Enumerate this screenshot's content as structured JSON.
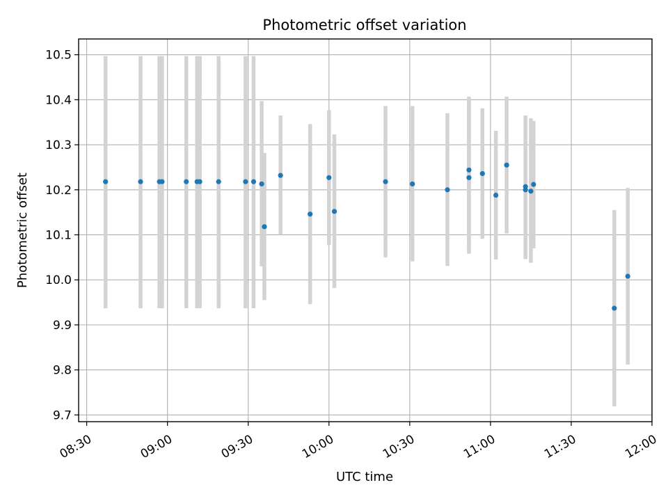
{
  "chart_data": {
    "type": "scatter",
    "title": "Photometric offset variation",
    "xlabel": "UTC time",
    "ylabel": "Photometric offset",
    "x_is_time": true,
    "xlim": [
      "08:27",
      "12:00"
    ],
    "ylim": [
      9.685,
      10.535
    ],
    "grid": true,
    "x_ticks": [
      "08:30",
      "09:00",
      "09:30",
      "10:00",
      "10:30",
      "11:00",
      "11:30",
      "12:00"
    ],
    "y_ticks": [
      9.7,
      9.8,
      9.9,
      10.0,
      10.1,
      10.2,
      10.3,
      10.4,
      10.5
    ],
    "y_tick_labels": [
      "9.7",
      "9.8",
      "9.9",
      "10.0",
      "10.1",
      "10.2",
      "10.3",
      "10.4",
      "10.5"
    ],
    "colors": {
      "point": "#1f77b4",
      "errorbar": "#d3d3d3"
    },
    "points": [
      {
        "time": "08:37",
        "y": 10.218,
        "low": 9.937,
        "high": 10.497
      },
      {
        "time": "08:50",
        "y": 10.218,
        "low": 9.937,
        "high": 10.497
      },
      {
        "time": "08:57",
        "y": 10.218,
        "low": 9.937,
        "high": 10.497
      },
      {
        "time": "08:58",
        "y": 10.218,
        "low": 9.937,
        "high": 10.497
      },
      {
        "time": "09:07",
        "y": 10.218,
        "low": 9.937,
        "high": 10.497
      },
      {
        "time": "09:11",
        "y": 10.218,
        "low": 9.937,
        "high": 10.497
      },
      {
        "time": "09:12",
        "y": 10.218,
        "low": 9.937,
        "high": 10.497
      },
      {
        "time": "09:19",
        "y": 10.218,
        "low": 9.937,
        "high": 10.497
      },
      {
        "time": "09:29",
        "y": 10.218,
        "low": 9.937,
        "high": 10.497
      },
      {
        "time": "09:32",
        "y": 10.218,
        "low": 9.937,
        "high": 10.497
      },
      {
        "time": "09:35",
        "y": 10.213,
        "low": 10.03,
        "high": 10.397
      },
      {
        "time": "09:36",
        "y": 10.118,
        "low": 9.955,
        "high": 10.282
      },
      {
        "time": "09:42",
        "y": 10.232,
        "low": 10.1,
        "high": 10.365
      },
      {
        "time": "09:53",
        "y": 10.146,
        "low": 9.946,
        "high": 10.346
      },
      {
        "time": "10:00",
        "y": 10.227,
        "low": 10.077,
        "high": 10.377
      },
      {
        "time": "10:02",
        "y": 10.152,
        "low": 9.982,
        "high": 10.323
      },
      {
        "time": "10:21",
        "y": 10.218,
        "low": 10.05,
        "high": 10.386
      },
      {
        "time": "10:31",
        "y": 10.213,
        "low": 10.041,
        "high": 10.386
      },
      {
        "time": "10:44",
        "y": 10.2,
        "low": 10.031,
        "high": 10.37
      },
      {
        "time": "10:52",
        "y": 10.244,
        "low": 10.081,
        "high": 10.407
      },
      {
        "time": "10:52",
        "y": 10.227,
        "low": 10.058,
        "high": 10.396
      },
      {
        "time": "10:57",
        "y": 10.236,
        "low": 10.091,
        "high": 10.381
      },
      {
        "time": "11:02",
        "y": 10.188,
        "low": 10.045,
        "high": 10.331
      },
      {
        "time": "11:06",
        "y": 10.255,
        "low": 10.103,
        "high": 10.407
      },
      {
        "time": "11:13",
        "y": 10.207,
        "low": 10.049,
        "high": 10.365
      },
      {
        "time": "11:13",
        "y": 10.2,
        "low": 10.046,
        "high": 10.355
      },
      {
        "time": "11:15",
        "y": 10.197,
        "low": 10.038,
        "high": 10.359
      },
      {
        "time": "11:16",
        "y": 10.212,
        "low": 10.07,
        "high": 10.353
      },
      {
        "time": "11:46",
        "y": 9.937,
        "low": 9.719,
        "high": 10.155
      },
      {
        "time": "11:51",
        "y": 10.008,
        "low": 9.812,
        "high": 10.204
      }
    ]
  }
}
